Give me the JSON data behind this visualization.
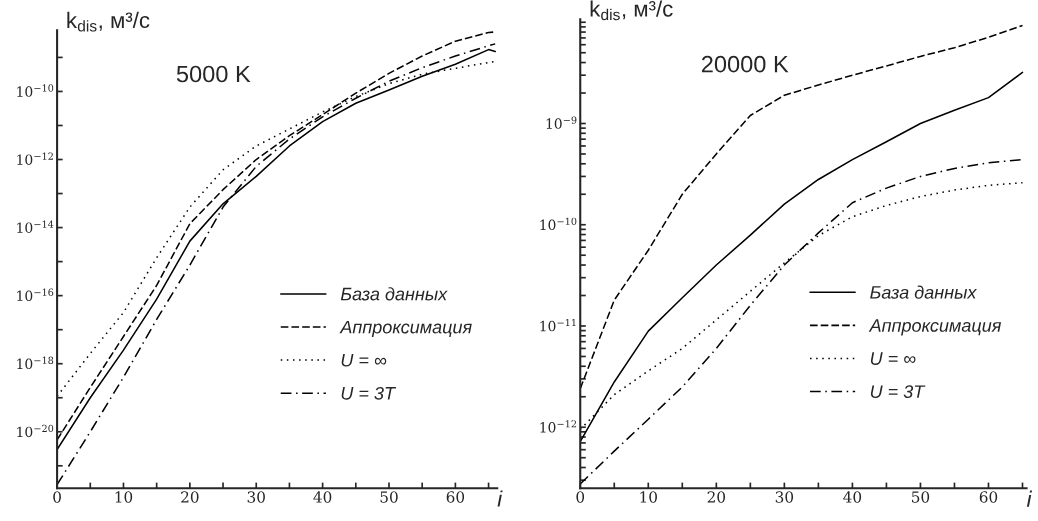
{
  "chart_data": [
    {
      "type": "line",
      "title": "5000 K",
      "xlabel": "i",
      "ylabel": "k$_{dis}$, м³/с",
      "log": "y",
      "legend": "lower right",
      "grid": false,
      "x": [
        0,
        5,
        10,
        15,
        20,
        25,
        30,
        35,
        40,
        45,
        50,
        55,
        60,
        65,
        66
      ],
      "xlim": [
        0,
        66.3
      ],
      "xticks": [
        0,
        {
          "value": 5,
          "label": null
        },
        10,
        {
          "value": 15,
          "label": null
        },
        20,
        {
          "value": 25,
          "label": null
        },
        30,
        {
          "value": 35,
          "label": null
        },
        40,
        {
          "value": 45,
          "label": null
        },
        50,
        {
          "value": 55,
          "label": null
        },
        60,
        {
          "value": 65,
          "label": null
        }
      ],
      "ylim": [
        2.2e-22,
        6.3e-09
      ],
      "yticks": [
        {
          "value": 1e-21,
          "label": null
        },
        {
          "value": 1e-20,
          "label": "10$^{−20}$"
        },
        {
          "value": 1e-19,
          "label": null
        },
        {
          "value": 1e-18,
          "label": "10$^{−18}$"
        },
        {
          "value": 1e-17,
          "label": null
        },
        {
          "value": 1e-16,
          "label": "10$^{−16}$"
        },
        {
          "value": 1e-15,
          "label": null
        },
        {
          "value": 1e-14,
          "label": "10$^{−14}$"
        },
        {
          "value": 1e-13,
          "label": null
        },
        {
          "value": 1e-12,
          "label": "10$^{−12}$"
        },
        {
          "value": 1e-11,
          "label": null
        },
        {
          "value": 1e-10,
          "label": "10$^{−10}$"
        },
        {
          "value": 1e-09,
          "label": null
        }
      ],
      "series": [
        {
          "name": "База данных",
          "color": "#000000",
          "line_style": "solid",
          "values": [
            3e-21,
            1e-19,
            2.5e-18,
            7.9e-17,
            4e-15,
            5e-14,
            3.2e-13,
            2.5e-12,
            1.3e-11,
            4.5e-11,
            1.1e-10,
            2.8e-10,
            6.3e-10,
            1.7e-09,
            1.5e-09
          ]
        },
        {
          "name": "Аппроксимация",
          "color": "#000000",
          "line_style": "dashed",
          "values": [
            5.8e-21,
            2e-19,
            6.3e-18,
            2e-16,
            1.3e-14,
            1.3e-13,
            1e-12,
            5e-12,
            2.1e-11,
            8.9e-11,
            3.4e-10,
            1.1e-09,
            3e-09,
            5.4e-09,
            5.6e-09
          ]
        },
        {
          "name": "U = ∞",
          "color": "#000000",
          "line_style": "dotted",
          "values": [
            1.1e-19,
            2e-18,
            3.2e-17,
            1.3e-15,
            4e-14,
            5e-13,
            2.5e-12,
            7.9e-12,
            2.5e-11,
            7.1e-11,
            1.7e-10,
            3.2e-10,
            4.8e-10,
            7.1e-10,
            7.6e-10
          ]
        },
        {
          "name": "U = 3T",
          "color": "#000000",
          "line_style": "dashdot",
          "values": [
            2.8e-22,
            1e-20,
            4e-19,
            2e-17,
            7.9e-16,
            4e-14,
            6.3e-13,
            4e-12,
            1.8e-11,
            6.3e-11,
            2e-10,
            5e-10,
            1.1e-09,
            2.2e-09,
            2.5e-09
          ]
        }
      ]
    },
    {
      "type": "line",
      "title": "20000 K",
      "xlabel": "i",
      "ylabel": "k$_{dis}$, м³/с",
      "log": "y",
      "legend": "lower right",
      "grid": false,
      "x": [
        0,
        5,
        10,
        15,
        20,
        25,
        30,
        35,
        40,
        45,
        50,
        55,
        60,
        65
      ],
      "xlim": [
        0,
        65.6
      ],
      "xticks": [
        0,
        {
          "value": 5,
          "label": null
        },
        10,
        {
          "value": 15,
          "label": null
        },
        20,
        {
          "value": 25,
          "label": null
        },
        30,
        {
          "value": 35,
          "label": null
        },
        40,
        {
          "value": 45,
          "label": null
        },
        50,
        {
          "value": 55,
          "label": null
        },
        60,
        {
          "value": 65,
          "label": null
        }
      ],
      "ylim": [
        2.5e-13,
        1.07e-08
      ],
      "yticks": [
        {
          "value": 3e-13,
          "label": null
        },
        {
          "value": 4e-13,
          "label": null
        },
        {
          "value": 5e-13,
          "label": null
        },
        {
          "value": 6e-13,
          "label": null
        },
        {
          "value": 7e-13,
          "label": null
        },
        {
          "value": 8e-13,
          "label": null
        },
        {
          "value": 9e-13,
          "label": null
        },
        {
          "value": 1e-12,
          "label": "10$^{−12}$"
        },
        {
          "value": 2e-12,
          "label": null
        },
        {
          "value": 3e-12,
          "label": null
        },
        {
          "value": 4e-12,
          "label": null
        },
        {
          "value": 5e-12,
          "label": null
        },
        {
          "value": 6e-12,
          "label": null
        },
        {
          "value": 7e-12,
          "label": null
        },
        {
          "value": 8e-12,
          "label": null
        },
        {
          "value": 9e-12,
          "label": null
        },
        {
          "value": 1e-11,
          "label": "10$^{−11}$"
        },
        {
          "value": 2e-11,
          "label": null
        },
        {
          "value": 3e-11,
          "label": null
        },
        {
          "value": 4e-11,
          "label": null
        },
        {
          "value": 5e-11,
          "label": null
        },
        {
          "value": 6e-11,
          "label": null
        },
        {
          "value": 7e-11,
          "label": null
        },
        {
          "value": 8e-11,
          "label": null
        },
        {
          "value": 9e-11,
          "label": null
        },
        {
          "value": 1e-10,
          "label": "10$^{−10}$"
        },
        {
          "value": 2e-10,
          "label": null
        },
        {
          "value": 3e-10,
          "label": null
        },
        {
          "value": 4e-10,
          "label": null
        },
        {
          "value": 5e-10,
          "label": null
        },
        {
          "value": 6e-10,
          "label": null
        },
        {
          "value": 7e-10,
          "label": null
        },
        {
          "value": 8e-10,
          "label": null
        },
        {
          "value": 9e-10,
          "label": null
        },
        {
          "value": 1e-09,
          "label": "10$^{−9}$"
        },
        {
          "value": 2e-09,
          "label": null
        },
        {
          "value": 3e-09,
          "label": null
        },
        {
          "value": 4e-09,
          "label": null
        },
        {
          "value": 5e-09,
          "label": null
        },
        {
          "value": 6e-09,
          "label": null
        },
        {
          "value": 7e-09,
          "label": null
        },
        {
          "value": 8e-09,
          "label": null
        },
        {
          "value": 9e-09,
          "label": null
        },
        {
          "value": 1e-08,
          "label": null
        }
      ],
      "series": [
        {
          "name": "База данных",
          "color": "#000000",
          "line_style": "solid",
          "values": [
            7.2e-13,
            2.8e-12,
            8.9e-12,
            1.9e-11,
            4e-11,
            7.9e-11,
            1.6e-10,
            2.8e-10,
            4.4e-10,
            6.6e-10,
            1e-09,
            1.35e-09,
            1.8e-09,
            3.2e-09
          ]
        },
        {
          "name": "Аппроксимация",
          "color": "#000000",
          "line_style": "dashed",
          "values": [
            2.4e-12,
            1.8e-11,
            5.6e-11,
            2e-10,
            5e-10,
            1.2e-09,
            1.9e-09,
            2.4e-09,
            3e-09,
            3.7e-09,
            4.6e-09,
            5.6e-09,
            7.1e-09,
            9.3e-09
          ]
        },
        {
          "name": "U = ∞",
          "color": "#000000",
          "line_style": "dotted",
          "values": [
            9.5e-13,
            2.1e-12,
            3.6e-12,
            6e-12,
            1.15e-11,
            2.2e-11,
            4.2e-11,
            7.8e-11,
            1.2e-10,
            1.55e-10,
            1.9e-10,
            2.2e-10,
            2.45e-10,
            2.6e-10
          ]
        },
        {
          "name": "U = 3T",
          "color": "#000000",
          "line_style": "dashdot",
          "values": [
            2.75e-13,
            5.8e-13,
            1.2e-12,
            2.5e-12,
            6e-12,
            1.6e-11,
            4e-11,
            8.3e-11,
            1.65e-10,
            2.3e-10,
            3e-10,
            3.6e-10,
            4.1e-10,
            4.4e-10
          ]
        }
      ]
    }
  ]
}
